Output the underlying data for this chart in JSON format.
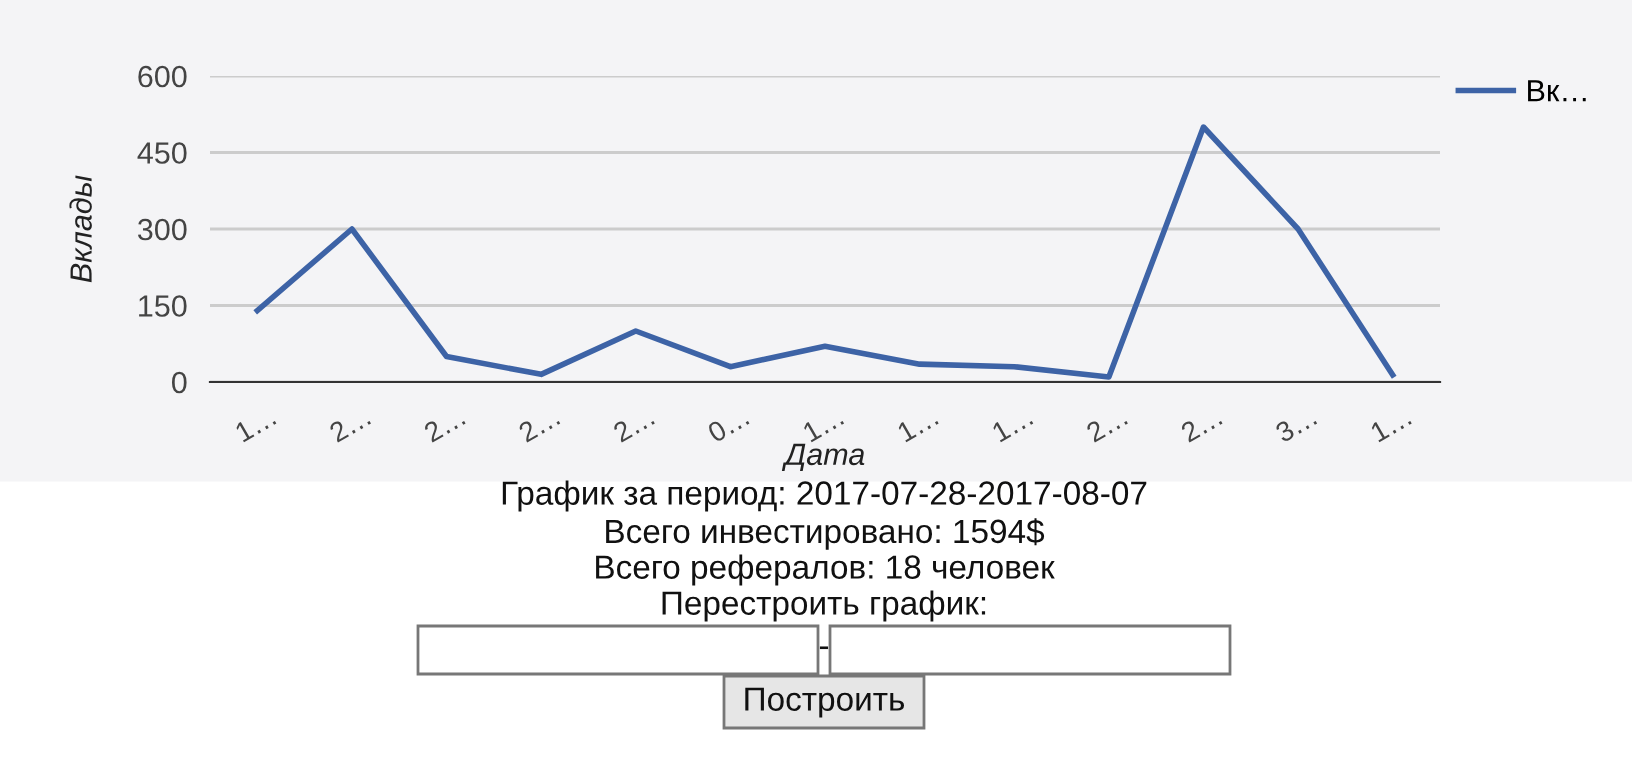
{
  "chart_data": {
    "type": "line",
    "xlabel": "Дата",
    "ylabel": "Вклады",
    "categories": [
      "1…",
      "2…",
      "2…",
      "2…",
      "2…",
      "0…",
      "1…",
      "1…",
      "1…",
      "2…",
      "2…",
      "3…",
      "1…"
    ],
    "series": [
      {
        "name": "Вк…",
        "color": "#3d63a6",
        "values": [
          140,
          300,
          50,
          15,
          100,
          30,
          70,
          35,
          30,
          10,
          500,
          300,
          14
        ]
      }
    ],
    "ylim": [
      0,
      600
    ],
    "yticks": [
      0,
      150,
      300,
      450,
      600
    ],
    "grid": "y",
    "legend": "top right",
    "marker": "none",
    "line_style": "solid",
    "annotations": [
      "График за период: 2017-07-28-2017-08-07",
      "Всего инвестировано: 1594$",
      "Всего рефералов: 18 человек",
      "Перестроить график:",
      "-",
      "Построить"
    ]
  }
}
